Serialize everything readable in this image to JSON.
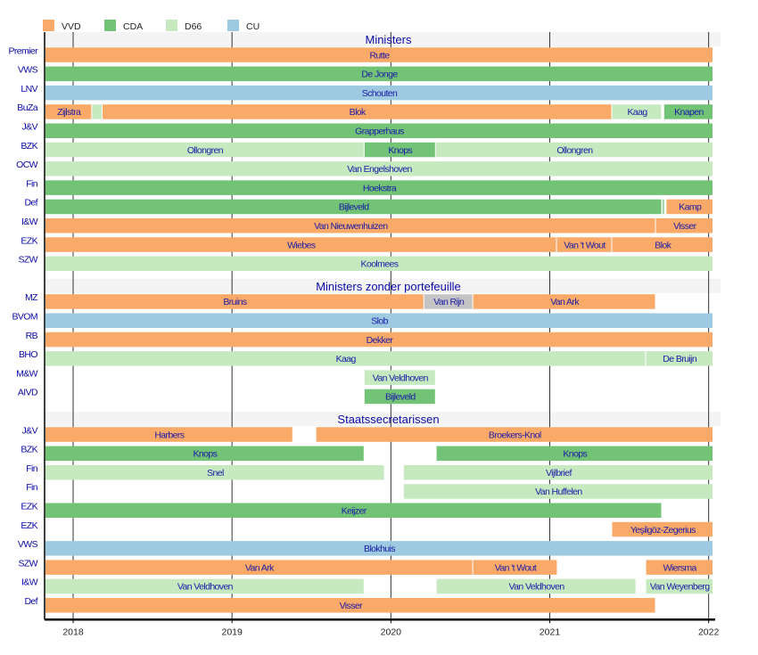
{
  "chart_data": {
    "type": "timeline",
    "title": "",
    "xlabel": "",
    "ylabel": "",
    "x_range": [
      2017.826,
      2022.03
    ],
    "x_ticks": [
      2018,
      2019,
      2020,
      2021,
      2022
    ],
    "x_tick_labels": [
      "2018",
      "2019",
      "2020",
      "2021",
      "2022"
    ],
    "grid": "vertical lines at each year",
    "legend_position": "top-left",
    "parties": [
      {
        "name": "VVD",
        "color": "#f9a968"
      },
      {
        "name": "CDA",
        "color": "#72c376"
      },
      {
        "name": "D66",
        "color": "#c7e9c0"
      },
      {
        "name": "CU",
        "color": "#9ecae1"
      }
    ],
    "other_color": "#c4c4c4",
    "sections": [
      {
        "title": "Ministers",
        "rows": [
          {
            "label": "Premier",
            "bars": [
              {
                "name": "Rutte",
                "party": "VVD",
                "start": 2017.826,
                "end": 2022.03
              }
            ]
          },
          {
            "label": "VWS",
            "bars": [
              {
                "name": "De Jonge",
                "party": "CDA",
                "start": 2017.826,
                "end": 2022.03
              }
            ]
          },
          {
            "label": "LNV",
            "bars": [
              {
                "name": "Schouten",
                "party": "CU",
                "start": 2017.826,
                "end": 2022.03
              }
            ]
          },
          {
            "label": "BuZa",
            "bars": [
              {
                "name": "Zijlstra",
                "party": "VVD",
                "start": 2017.826,
                "end": 2018.12
              },
              {
                "name": "",
                "party": "D66",
                "start": 2018.12,
                "end": 2018.185
              },
              {
                "name": "Blok",
                "party": "VVD",
                "start": 2018.185,
                "end": 2021.393
              },
              {
                "name": "Kaag",
                "party": "D66",
                "start": 2021.393,
                "end": 2021.707
              },
              {
                "name": "Knapen",
                "party": "CDA",
                "start": 2021.72,
                "end": 2022.03
              }
            ]
          },
          {
            "label": "J&V",
            "bars": [
              {
                "name": "Grapperhaus",
                "party": "CDA",
                "start": 2017.826,
                "end": 2022.03
              }
            ]
          },
          {
            "label": "BZK",
            "bars": [
              {
                "name": "Ollongren",
                "party": "D66",
                "start": 2017.826,
                "end": 2019.834
              },
              {
                "name": "Knops",
                "party": "CDA",
                "start": 2019.834,
                "end": 2020.283
              },
              {
                "name": "Ollongren",
                "party": "D66",
                "start": 2020.283,
                "end": 2022.03
              }
            ]
          },
          {
            "label": "OCW",
            "bars": [
              {
                "name": "Van Engelshoven",
                "party": "D66",
                "start": 2017.826,
                "end": 2022.03
              }
            ]
          },
          {
            "label": "Fin",
            "bars": [
              {
                "name": "Hoekstra",
                "party": "CDA",
                "start": 2017.826,
                "end": 2022.03
              }
            ]
          },
          {
            "label": "Def",
            "bars": [
              {
                "name": "Bijleveld",
                "party": "CDA",
                "start": 2017.826,
                "end": 2021.707
              },
              {
                "name": "",
                "party": "CDA",
                "start": 2021.712,
                "end": 2021.725
              },
              {
                "name": "Kamp",
                "party": "VVD",
                "start": 2021.735,
                "end": 2022.03
              }
            ]
          },
          {
            "label": "I&W",
            "bars": [
              {
                "name": "Van Nieuwenhuizen",
                "party": "VVD",
                "start": 2017.826,
                "end": 2021.668
              },
              {
                "name": "Visser",
                "party": "VVD",
                "start": 2021.668,
                "end": 2022.03
              }
            ]
          },
          {
            "label": "EZK",
            "bars": [
              {
                "name": "Wiebes",
                "party": "VVD",
                "start": 2017.826,
                "end": 2021.045
              },
              {
                "name": "Van 't Wout",
                "party": "VVD",
                "start": 2021.045,
                "end": 2021.393
              },
              {
                "name": "Blok",
                "party": "VVD",
                "start": 2021.393,
                "end": 2022.03
              }
            ]
          },
          {
            "label": "SZW",
            "bars": [
              {
                "name": "Koolmees",
                "party": "D66",
                "start": 2017.826,
                "end": 2022.03
              }
            ]
          }
        ]
      },
      {
        "title": "Ministers zonder portefeuille",
        "rows": [
          {
            "label": "MZ",
            "bars": [
              {
                "name": "Bruins",
                "party": "VVD",
                "start": 2017.826,
                "end": 2020.21
              },
              {
                "name": "Van Rijn",
                "party": "Other",
                "start": 2020.21,
                "end": 2020.518
              },
              {
                "name": "Van Ark",
                "party": "VVD",
                "start": 2020.518,
                "end": 2021.668
              }
            ]
          },
          {
            "label": "BVOM",
            "bars": [
              {
                "name": "Slob",
                "party": "CU",
                "start": 2017.826,
                "end": 2022.03
              }
            ]
          },
          {
            "label": "RB",
            "bars": [
              {
                "name": "Dekker",
                "party": "VVD",
                "start": 2017.826,
                "end": 2022.03
              }
            ]
          },
          {
            "label": "BHO",
            "bars": [
              {
                "name": "Kaag",
                "party": "D66",
                "start": 2017.826,
                "end": 2021.606
              },
              {
                "name": "De Bruijn",
                "party": "D66",
                "start": 2021.606,
                "end": 2022.03
              }
            ]
          },
          {
            "label": "M&W",
            "bars": [
              {
                "name": "Van Veldhoven",
                "party": "D66",
                "start": 2019.834,
                "end": 2020.283
              }
            ]
          },
          {
            "label": "AIVD",
            "bars": [
              {
                "name": "Bijleveld",
                "party": "CDA",
                "start": 2019.834,
                "end": 2020.283
              }
            ]
          }
        ]
      },
      {
        "title": "Staatssecretarissen",
        "rows": [
          {
            "label": "J&V",
            "bars": [
              {
                "name": "Harbers",
                "party": "VVD",
                "start": 2017.826,
                "end": 2019.385
              },
              {
                "name": "Broekers-Knol",
                "party": "VVD",
                "start": 2019.53,
                "end": 2022.03
              }
            ]
          },
          {
            "label": "BZK",
            "bars": [
              {
                "name": "Knops",
                "party": "CDA",
                "start": 2017.826,
                "end": 2019.834
              },
              {
                "name": "Knops",
                "party": "CDA",
                "start": 2020.288,
                "end": 2022.03
              }
            ]
          },
          {
            "label": "Fin",
            "bars": [
              {
                "name": "Snel",
                "party": "D66",
                "start": 2017.826,
                "end": 2019.963
              },
              {
                "name": "Vijlbrief",
                "party": "D66",
                "start": 2020.081,
                "end": 2022.03
              }
            ]
          },
          {
            "label": "Fin",
            "bars": [
              {
                "name": "Van Huffelen",
                "party": "D66",
                "start": 2020.081,
                "end": 2022.03
              }
            ]
          },
          {
            "label": "EZK",
            "bars": [
              {
                "name": "Keijzer",
                "party": "CDA",
                "start": 2017.826,
                "end": 2021.707
              }
            ]
          },
          {
            "label": "EZK",
            "bars": [
              {
                "name": "Yeşilgöz-Zegerius",
                "party": "VVD",
                "start": 2021.393,
                "end": 2022.03
              }
            ]
          },
          {
            "label": "VWS",
            "bars": [
              {
                "name": "Blokhuis",
                "party": "CU",
                "start": 2017.826,
                "end": 2022.03
              }
            ]
          },
          {
            "label": "SZW",
            "bars": [
              {
                "name": "Van Ark",
                "party": "VVD",
                "start": 2017.826,
                "end": 2020.518
              },
              {
                "name": "Van 't Wout",
                "party": "VVD",
                "start": 2020.518,
                "end": 2021.05
              },
              {
                "name": "Wiersma",
                "party": "VVD",
                "start": 2021.606,
                "end": 2022.03
              }
            ]
          },
          {
            "label": "I&W",
            "bars": [
              {
                "name": "Van Veldhoven",
                "party": "D66",
                "start": 2017.826,
                "end": 2019.834
              },
              {
                "name": "Van Veldhoven",
                "party": "D66",
                "start": 2020.288,
                "end": 2021.545
              },
              {
                "name": "Van Weyenberg",
                "party": "D66",
                "start": 2021.606,
                "end": 2022.03
              }
            ]
          },
          {
            "label": "Def",
            "bars": [
              {
                "name": "Visser",
                "party": "VVD",
                "start": 2017.826,
                "end": 2021.668
              }
            ]
          }
        ]
      }
    ]
  }
}
